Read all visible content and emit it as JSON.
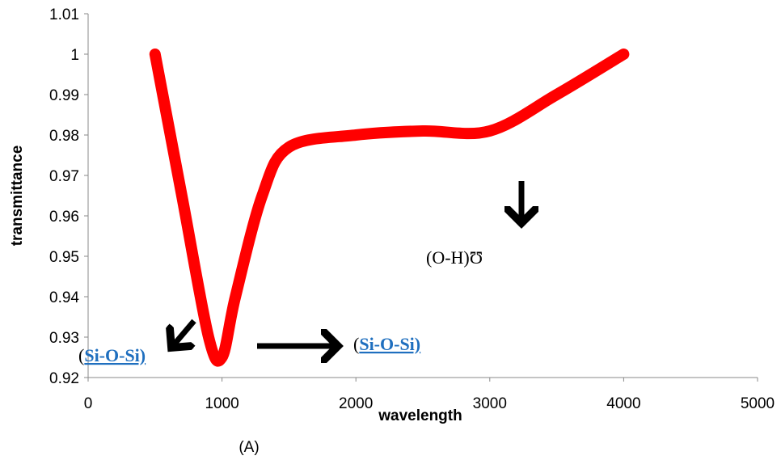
{
  "chart_data": {
    "type": "line",
    "xlabel": "wavelength",
    "ylabel": "transmittance",
    "xlim": [
      0,
      5000
    ],
    "ylim": [
      0.92,
      1.01
    ],
    "x_ticks": [
      "0",
      "1000",
      "2000",
      "3000",
      "4000",
      "5000"
    ],
    "y_ticks": [
      "0.92",
      "0.93",
      "0.94",
      "0.95",
      "0.96",
      "0.97",
      "0.98",
      "0.99",
      "1",
      "1.01"
    ],
    "grid": false,
    "series": [
      {
        "color": "#ff0000",
        "x": [
          500,
          700,
          900,
          1000,
          1100,
          1300,
          1500,
          2000,
          2500,
          3000,
          3500,
          4000
        ],
        "y": [
          1.0,
          0.965,
          0.93,
          0.925,
          0.94,
          0.965,
          0.977,
          0.98,
          0.981,
          0.981,
          0.99,
          1.0
        ]
      }
    ],
    "annotations": {
      "oh_label": "(O-H)Ʊ",
      "sios_left_paren": "(",
      "sios_left_text": "Si-O-Si)",
      "sios_right_paren": "(",
      "sios_right_text": "Si-O-Si)",
      "caption": "(A)"
    },
    "colors": {
      "series": "#ff0000",
      "link_text": "#1f6fbf",
      "arrow": "#000000"
    }
  }
}
